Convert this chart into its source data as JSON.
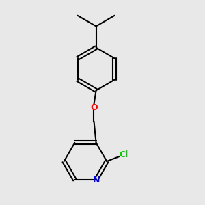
{
  "bg_color": "#e8e8e8",
  "bond_color": "#000000",
  "atom_colors": {
    "N": "#0000ff",
    "O": "#ff0000",
    "Cl": "#00cc00"
  },
  "line_width": 1.5,
  "bond_width": 1.5,
  "figsize": [
    3.0,
    3.0
  ],
  "dpi": 100
}
